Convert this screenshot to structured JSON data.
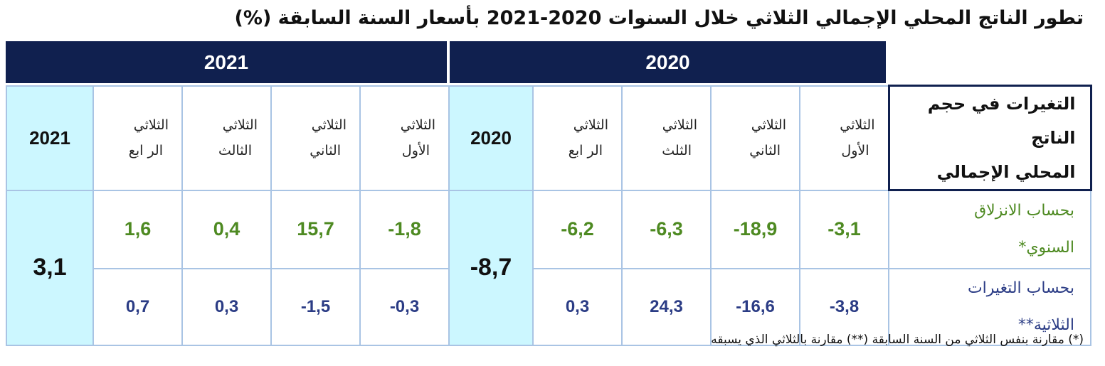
{
  "title": "تطور الناتج المحلي الإجمالي الثلاثي خلال السنوات 2020-2021 بأسعار السنة السابقة (%)",
  "years": {
    "y2020": "2020",
    "y2021": "2021"
  },
  "corner_label": {
    "line1": "التغيرات في حجم الناتج",
    "line2": "المحلي الإجمالي"
  },
  "quarters_2020": [
    {
      "l1": "الثلاثي",
      "l2": "الأول"
    },
    {
      "l1": "الثلاثي",
      "l2": "الثاني"
    },
    {
      "l1": "الثلاثي",
      "l2": "الثلث"
    },
    {
      "l1": "الثلاثي",
      "l2": "الر ابع"
    }
  ],
  "quarters_2021": [
    {
      "l1": "الثلاثي",
      "l2": "الأول"
    },
    {
      "l1": "الثلاثي",
      "l2": "الثاني"
    },
    {
      "l1": "الثلاثي",
      "l2": "الثالث"
    },
    {
      "l1": "الثلاثي",
      "l2": "الر ابع"
    }
  ],
  "annual_col": {
    "y2020": "2020",
    "y2021": "2021"
  },
  "rows": [
    {
      "label_l1": "بحساب الانزلاق",
      "label_l2": "السنوي*",
      "q2020": [
        "-3,1",
        "-18,9",
        "-6,3",
        "-6,2"
      ],
      "q2021": [
        "-1,8",
        "15,7",
        "0,4",
        "1,6"
      ]
    },
    {
      "label_l1": "بحساب التغيرات",
      "label_l2": "الثلاثية**",
      "q2020": [
        "-3,8",
        "-16,6",
        "24,3",
        "0,3"
      ],
      "q2021": [
        "-0,3",
        "-1,5",
        "0,3",
        "0,7"
      ]
    }
  ],
  "annual_values": {
    "y2020": "-8,7",
    "y2021": "3,1"
  },
  "footnote": "(*) مقارنة بنفس الثلاثي من السنة السابقة (**) مقارنة بالثلاثي الذي يسبقه"
}
